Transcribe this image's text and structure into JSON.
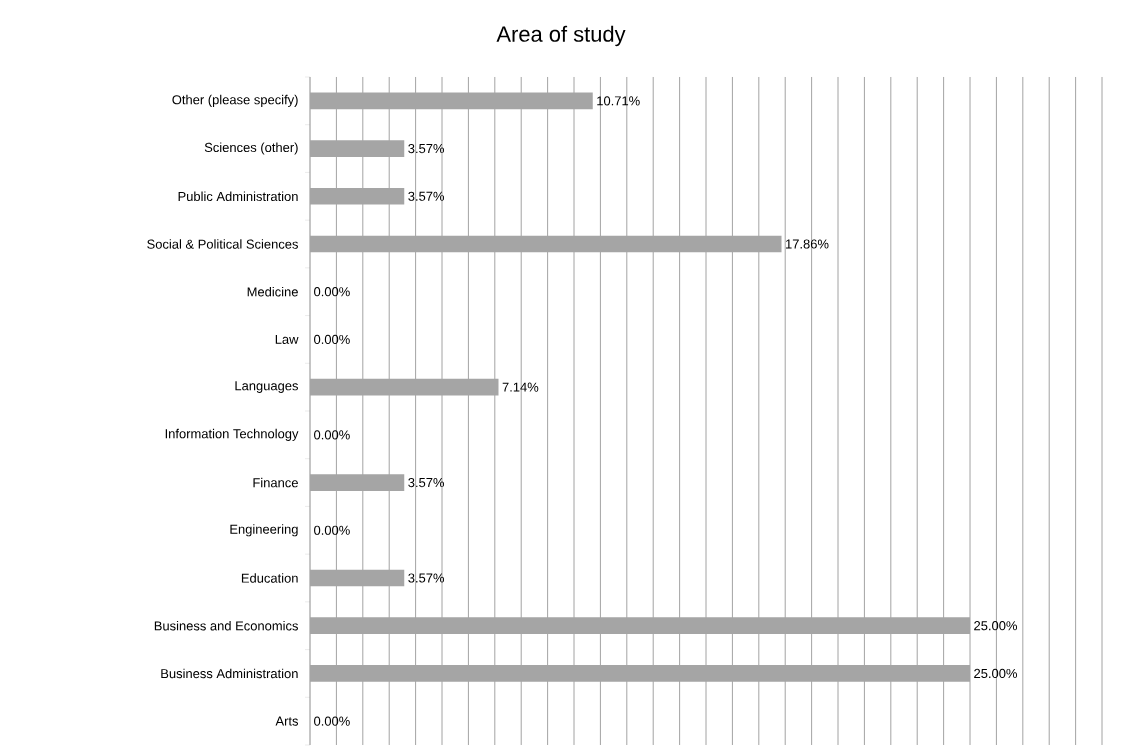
{
  "chart_data": {
    "type": "bar",
    "orientation": "horizontal",
    "title": "Area of study",
    "categories": [
      "Other (please specify)",
      "Sciences (other)",
      "Public Administration",
      "Social & Political Sciences",
      "Medicine",
      "Law",
      "Languages",
      "Information Technology",
      "Finance",
      "Engineering",
      "Education",
      "Business and Economics",
      "Business Administration",
      "Arts"
    ],
    "values": [
      10.71,
      3.57,
      3.57,
      17.86,
      0,
      0,
      7.14,
      0,
      3.57,
      0,
      3.57,
      25,
      25,
      0
    ],
    "value_labels": [
      "10.71%",
      "3.57%",
      "3.57%",
      "17.86%",
      "0.00%",
      "0.00%",
      "7.14%",
      "0.00%",
      "3.57%",
      "0.00%",
      "3.57%",
      "25.00%",
      "25.00%",
      "0.00%"
    ],
    "color": "#a5a5a5",
    "grid": "x",
    "tick_labels": "y"
  }
}
